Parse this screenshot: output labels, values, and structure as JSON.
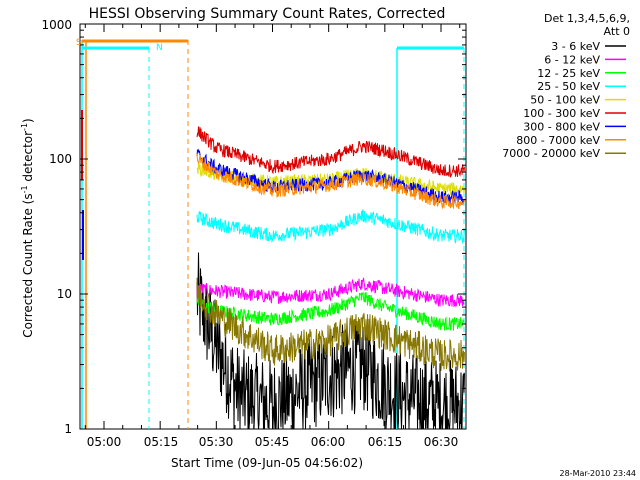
{
  "chart_data": {
    "type": "line",
    "title": "HESSI Observing Summary Count Rates, Corrected",
    "xlabel": "Start Time (09-Jun-05 04:56:02)",
    "ylabel": "Corrected Count Rate (s",
    "ylabel_sup1": "-1",
    "ylabel_mid": " detector",
    "ylabel_sup2": "-1",
    "ylabel_end": ")",
    "x_ticks": [
      "05:00",
      "05:15",
      "05:30",
      "05:45",
      "06:00",
      "06:15",
      "06:30"
    ],
    "y_ticks": [
      "1",
      "10",
      "100",
      "1000"
    ],
    "ylim": [
      1,
      1000
    ],
    "y_scale": "log",
    "legend": {
      "placement": "right",
      "header1": "Det 1,3,4,5,6,9,",
      "header2": "Att 0",
      "items": [
        {
          "label": "3 - 6 keV",
          "color": "#000000"
        },
        {
          "label": "6 - 12 keV",
          "color": "#ff00ff"
        },
        {
          "label": "12 - 25 keV",
          "color": "#00ff00"
        },
        {
          "label": "25 - 50 keV",
          "color": "#00ffff"
        },
        {
          "label": "50 - 100 keV",
          "color": "#dddd00"
        },
        {
          "label": "100 - 300 keV",
          "color": "#dd0000"
        },
        {
          "label": "300 - 800 keV",
          "color": "#0000ff"
        },
        {
          "label": "800 - 7000 keV",
          "color": "#ff8800"
        },
        {
          "label": "7000 - 20000 keV",
          "color": "#887700"
        }
      ]
    },
    "flags": {
      "S_label": "S",
      "N_label": "N"
    },
    "timestamp": "28-Mar-2010 23:44",
    "series": [
      {
        "name": "3 - 6 keV",
        "color": "#000000",
        "x": [
          5.4,
          5.5,
          5.6,
          5.75,
          6.0,
          6.15,
          6.3,
          6.5
        ],
        "y": [
          11,
          4,
          1.8,
          1.5,
          2.5,
          3,
          1.8,
          1.5
        ]
      },
      {
        "name": "6 - 12 keV",
        "color": "#ff00ff",
        "x": [
          5.4,
          5.5,
          5.75,
          6.0,
          6.15,
          6.25,
          6.5
        ],
        "y": [
          11,
          10.5,
          9.5,
          10,
          12,
          11,
          9
        ]
      },
      {
        "name": "12 - 25 keV",
        "color": "#00ff00",
        "x": [
          5.4,
          5.5,
          5.75,
          6.0,
          6.15,
          6.25,
          6.5
        ],
        "y": [
          9,
          7.5,
          6.5,
          7.5,
          9.5,
          8,
          6
        ]
      },
      {
        "name": "25 - 50 keV",
        "color": "#00ffff",
        "x": [
          5.4,
          5.5,
          5.75,
          6.0,
          6.15,
          6.25,
          6.5
        ],
        "y": [
          38,
          33,
          27,
          30,
          38,
          35,
          27
        ]
      },
      {
        "name": "50 - 100 keV",
        "color": "#dddd00",
        "x": [
          5.4,
          5.5,
          5.75,
          6.0,
          6.15,
          6.25,
          6.5
        ],
        "y": [
          88,
          76,
          67,
          70,
          78,
          72,
          60
        ]
      },
      {
        "name": "100 - 300 keV",
        "color": "#dd0000",
        "x": [
          5.4,
          5.5,
          5.75,
          6.0,
          6.15,
          6.25,
          6.5
        ],
        "y": [
          170,
          120,
          88,
          100,
          125,
          115,
          82
        ]
      },
      {
        "name": "300 - 800 keV",
        "color": "#0000ff",
        "x": [
          5.4,
          5.5,
          5.75,
          6.0,
          6.15,
          6.25,
          6.5
        ],
        "y": [
          112,
          85,
          62,
          66,
          76,
          70,
          52
        ]
      },
      {
        "name": "800 - 7000 keV",
        "color": "#ff8800",
        "x": [
          5.4,
          5.5,
          5.75,
          6.0,
          6.15,
          6.25,
          6.5
        ],
        "y": [
          105,
          78,
          58,
          64,
          72,
          66,
          48
        ]
      },
      {
        "name": "7000 - 20000 keV",
        "color": "#887700",
        "x": [
          5.4,
          5.5,
          5.75,
          6.0,
          6.15,
          6.25,
          6.5
        ],
        "y": [
          11,
          7,
          3.8,
          4.5,
          6,
          5,
          3.5
        ]
      }
    ]
  }
}
